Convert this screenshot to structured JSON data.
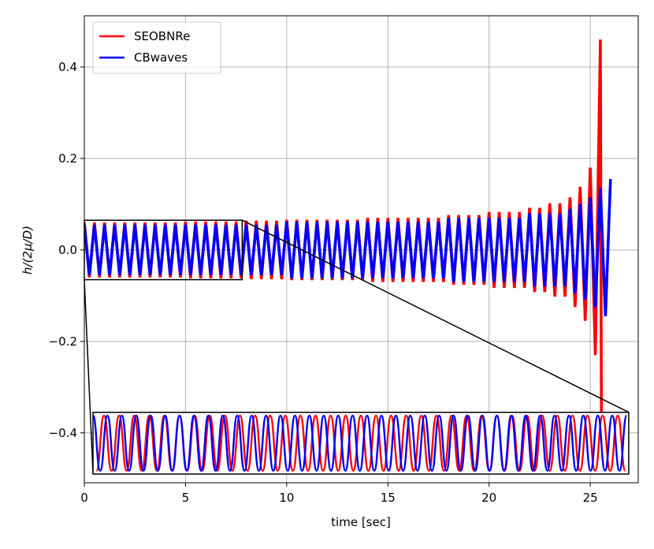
{
  "chart_data": {
    "type": "line",
    "xlabel": "time [sec]",
    "ylabel": "h/(2μ/D)",
    "xlim": [
      0,
      27.37
    ],
    "ylim": [
      -0.509,
      0.512
    ],
    "xticks": [
      0,
      5,
      10,
      15,
      20,
      25
    ],
    "yticks": [
      {
        "value": -0.4,
        "label": "−0.4"
      },
      {
        "value": -0.2,
        "label": "−0.2"
      },
      {
        "value": 0,
        "label": "0.0"
      },
      {
        "value": 0.2,
        "label": "0.2"
      },
      {
        "value": 0.4,
        "label": "0.4"
      }
    ],
    "grid": true,
    "legend": "upper left",
    "series": [
      {
        "name": "SEOBNRe",
        "color": "#ff0000",
        "x": [
          0,
          0.25,
          0.5,
          0.75,
          1,
          1.25,
          1.5,
          1.75,
          2,
          2.25,
          2.5,
          2.75,
          3,
          3.25,
          3.5,
          3.75,
          4,
          4.25,
          4.5,
          4.75,
          5,
          5.25,
          5.5,
          5.75,
          6,
          6.25,
          6.5,
          6.75,
          7,
          7.25,
          7.5,
          7.75,
          8,
          8.25,
          8.5,
          8.75,
          9,
          9.25,
          9.5,
          9.75,
          10,
          10.25,
          10.5,
          10.75,
          11,
          11.25,
          11.5,
          11.75,
          12,
          12.25,
          12.5,
          12.75,
          13,
          13.25,
          13.5,
          13.75,
          14,
          14.25,
          14.5,
          14.75,
          15,
          15.25,
          15.5,
          15.75,
          16,
          16.25,
          16.5,
          16.75,
          17,
          17.25,
          17.5,
          17.75,
          18,
          18.25,
          18.5,
          18.75,
          19,
          19.25,
          19.5,
          19.75,
          20,
          20.25,
          20.5,
          20.75,
          21,
          21.25,
          21.5,
          21.75,
          22,
          22.25,
          22.5,
          22.75,
          23,
          23.25,
          23.5,
          23.75,
          24,
          24.25,
          24.5,
          24.75,
          25,
          25.25,
          25.5,
          25.55
        ],
        "values": [
          0.06,
          -0.06,
          0.06,
          -0.06,
          0.06,
          -0.06,
          0.06,
          -0.06,
          0.06,
          -0.06,
          0.06,
          -0.06,
          0.06,
          -0.06,
          0.06,
          -0.06,
          0.06,
          -0.06,
          0.06,
          -0.06,
          0.062,
          -0.062,
          0.062,
          -0.062,
          0.062,
          -0.062,
          0.062,
          -0.062,
          0.062,
          -0.062,
          0.062,
          -0.062,
          0.064,
          -0.064,
          0.064,
          -0.064,
          0.064,
          -0.064,
          0.064,
          -0.064,
          0.066,
          -0.066,
          0.066,
          -0.066,
          0.066,
          -0.066,
          0.066,
          -0.066,
          0.066,
          -0.066,
          0.066,
          -0.066,
          0.066,
          -0.066,
          0.066,
          -0.066,
          0.07,
          -0.07,
          0.07,
          -0.07,
          0.07,
          -0.07,
          0.07,
          -0.07,
          0.07,
          -0.07,
          0.07,
          -0.07,
          0.07,
          -0.07,
          0.07,
          -0.07,
          0.076,
          -0.076,
          0.076,
          -0.076,
          0.076,
          -0.076,
          0.076,
          -0.076,
          0.083,
          -0.083,
          0.083,
          -0.083,
          0.083,
          -0.083,
          0.083,
          -0.083,
          0.092,
          -0.092,
          0.092,
          -0.092,
          0.102,
          -0.102,
          0.102,
          -0.102,
          0.115,
          -0.125,
          0.138,
          -0.155,
          0.18,
          -0.23,
          0.46,
          -0.36
        ]
      },
      {
        "name": "CBwaves",
        "color": "#0000ff",
        "x": [
          0,
          0.25,
          0.5,
          0.75,
          1,
          1.25,
          1.5,
          1.75,
          2,
          2.25,
          2.5,
          2.75,
          3,
          3.25,
          3.5,
          3.75,
          4,
          4.25,
          4.5,
          4.75,
          5,
          5.25,
          5.5,
          5.75,
          6,
          6.25,
          6.5,
          6.75,
          7,
          7.25,
          7.5,
          7.75,
          8,
          8.25,
          8.5,
          8.75,
          9,
          9.25,
          9.5,
          9.75,
          10,
          10.25,
          10.5,
          10.75,
          11,
          11.25,
          11.5,
          11.75,
          12,
          12.25,
          12.5,
          12.75,
          13,
          13.25,
          13.5,
          13.75,
          14,
          14.25,
          14.5,
          14.75,
          15,
          15.25,
          15.5,
          15.75,
          16,
          16.25,
          16.5,
          16.75,
          17,
          17.25,
          17.5,
          17.75,
          18,
          18.25,
          18.5,
          18.75,
          19,
          19.25,
          19.5,
          19.75,
          20,
          20.25,
          20.5,
          20.75,
          21,
          21.25,
          21.5,
          21.75,
          22,
          22.25,
          22.5,
          22.75,
          23,
          23.25,
          23.5,
          23.75,
          24,
          24.25,
          24.5,
          24.75,
          25,
          25.25,
          25.5,
          25.75,
          26
        ],
        "values": [
          0.055,
          -0.055,
          0.055,
          -0.055,
          0.055,
          -0.055,
          0.055,
          -0.055,
          0.055,
          -0.055,
          0.055,
          -0.055,
          0.055,
          -0.055,
          0.055,
          -0.055,
          0.055,
          -0.055,
          0.055,
          -0.055,
          0.055,
          -0.055,
          0.055,
          -0.055,
          0.055,
          -0.055,
          0.055,
          -0.055,
          0.055,
          -0.055,
          0.055,
          -0.055,
          0.055,
          -0.055,
          0.055,
          -0.055,
          0.055,
          -0.055,
          0.055,
          -0.055,
          0.062,
          -0.062,
          0.062,
          -0.062,
          0.062,
          -0.062,
          0.062,
          -0.062,
          0.062,
          -0.062,
          0.062,
          -0.062,
          0.062,
          -0.062,
          0.062,
          -0.062,
          0.062,
          -0.062,
          0.062,
          -0.062,
          0.062,
          -0.062,
          0.062,
          -0.062,
          0.062,
          -0.062,
          0.062,
          -0.062,
          0.062,
          -0.062,
          0.062,
          -0.062,
          0.07,
          -0.07,
          0.07,
          -0.07,
          0.07,
          -0.07,
          0.07,
          -0.07,
          0.07,
          -0.07,
          0.07,
          -0.07,
          0.07,
          -0.07,
          0.07,
          -0.07,
          0.08,
          -0.08,
          0.08,
          -0.08,
          0.08,
          -0.08,
          0.08,
          -0.08,
          0.09,
          -0.095,
          0.1,
          -0.108,
          0.115,
          -0.125,
          0.135,
          -0.145,
          0.155
        ]
      }
    ],
    "inset": {
      "xlim": [
        0,
        7.8
      ],
      "ylim": [
        -0.065,
        0.065
      ],
      "inset_xlim": [
        0.43,
        26.9
      ],
      "inset_ylim": [
        -0.49,
        -0.355
      ],
      "series": [
        {
          "color": "#ff0000",
          "x": [
            0.05,
            0.16,
            0.27,
            0.38,
            0.49,
            0.6,
            0.71,
            0.82,
            0.93,
            1.04,
            1.15,
            1.26,
            1.37,
            1.48,
            1.59,
            1.7,
            1.81,
            1.92,
            2.03,
            2.14,
            2.25,
            2.36,
            2.47,
            2.58,
            2.69,
            2.8,
            2.91,
            3.02,
            3.13,
            3.24,
            3.35,
            3.46,
            3.57,
            3.68,
            3.79,
            3.9,
            4.01,
            4.12,
            4.23,
            4.34,
            4.45,
            4.56,
            4.67,
            4.78,
            4.89,
            5,
            5.11,
            5.22,
            5.33,
            5.44,
            5.55,
            5.66,
            5.77,
            5.88,
            5.99,
            6.1,
            6.21,
            6.32,
            6.43,
            6.54,
            6.65,
            6.76,
            6.87,
            6.98,
            7.09,
            7.2,
            7.31,
            7.42,
            7.53,
            7.64,
            7.75
          ],
          "values": [
            -0.058,
            0.058,
            -0.058,
            0.058,
            -0.058,
            0.058,
            -0.058,
            0.058,
            -0.058,
            0.058,
            -0.058,
            0.058,
            -0.058,
            0.058,
            -0.058,
            0.058,
            -0.058,
            0.058,
            -0.058,
            0.058,
            -0.058,
            0.058,
            -0.058,
            0.058,
            -0.058,
            0.058,
            -0.058,
            0.058,
            -0.058,
            0.058,
            -0.058,
            0.058,
            -0.058,
            0.058,
            -0.058,
            0.058,
            -0.058,
            0.058,
            -0.058,
            0.058,
            -0.058,
            0.058,
            -0.058,
            0.058,
            -0.058,
            0.058,
            -0.058,
            0.058,
            -0.058,
            0.058,
            -0.058,
            0.058,
            -0.058,
            0.058,
            -0.058,
            0.058,
            -0.058,
            0.058,
            -0.058,
            0.058,
            -0.058,
            0.058,
            -0.058,
            0.058,
            -0.058,
            0.058,
            -0.058,
            0.058,
            -0.058,
            0.058,
            -0.058
          ]
        },
        {
          "color": "#0000ff",
          "x": [
            0,
            0.105,
            0.21,
            0.315,
            0.42,
            0.525,
            0.63,
            0.735,
            0.84,
            0.945,
            1.05,
            1.155,
            1.26,
            1.365,
            1.47,
            1.575,
            1.68,
            1.785,
            1.89,
            1.995,
            2.1,
            2.205,
            2.31,
            2.415,
            2.52,
            2.625,
            2.73,
            2.835,
            2.94,
            3.045,
            3.15,
            3.255,
            3.36,
            3.465,
            3.57,
            3.675,
            3.78,
            3.885,
            3.99,
            4.095,
            4.2,
            4.305,
            4.41,
            4.515,
            4.62,
            4.725,
            4.83,
            4.935,
            5.04,
            5.145,
            5.25,
            5.355,
            5.46,
            5.565,
            5.67,
            5.775,
            5.88,
            5.985,
            6.09,
            6.195,
            6.3,
            6.405,
            6.51,
            6.615,
            6.72,
            6.825,
            6.93,
            7.035,
            7.14,
            7.245,
            7.35,
            7.455,
            7.56,
            7.665,
            7.77
          ],
          "values": [
            0.058,
            -0.058,
            0.058,
            -0.058,
            0.058,
            -0.058,
            0.058,
            -0.058,
            0.058,
            -0.058,
            0.058,
            -0.058,
            0.058,
            -0.058,
            0.058,
            -0.058,
            0.058,
            -0.058,
            0.058,
            -0.058,
            0.058,
            -0.058,
            0.058,
            -0.058,
            0.058,
            -0.058,
            0.058,
            -0.058,
            0.058,
            -0.058,
            0.058,
            -0.058,
            0.058,
            -0.058,
            0.058,
            -0.058,
            0.058,
            -0.058,
            0.058,
            -0.058,
            0.058,
            -0.058,
            0.058,
            -0.058,
            0.058,
            -0.058,
            0.058,
            -0.058,
            0.058,
            -0.058,
            0.058,
            -0.058,
            0.058,
            -0.058,
            0.058,
            -0.058,
            0.058,
            -0.058,
            0.058,
            -0.058,
            0.058,
            -0.058,
            0.058,
            -0.058,
            0.058,
            -0.058,
            0.058,
            -0.058,
            0.058,
            -0.058,
            0.058,
            -0.058,
            0.058,
            -0.058,
            0.058
          ]
        }
      ]
    }
  }
}
